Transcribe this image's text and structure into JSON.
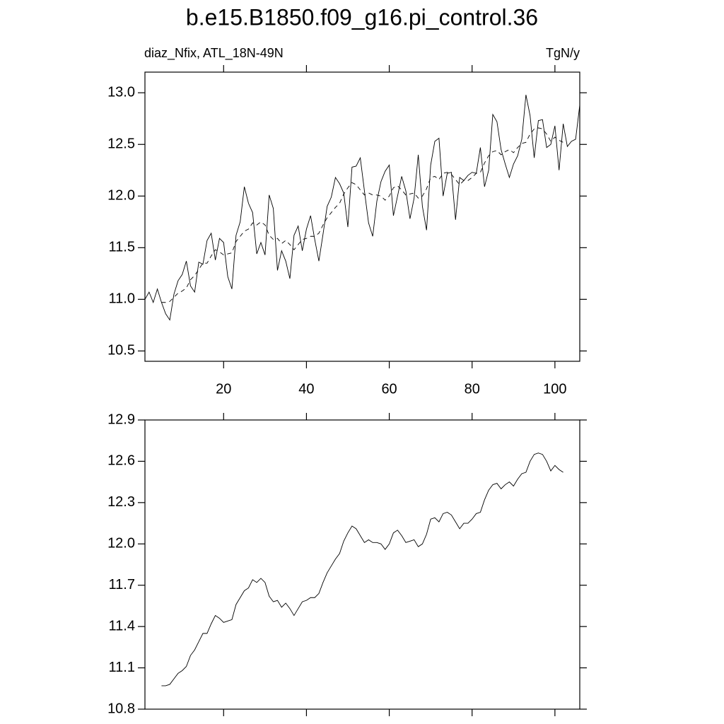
{
  "chart_data": [
    {
      "type": "line",
      "title": "b.e15.B1850.f09_g16.pi_control.36",
      "subtitle_left": "diaz_Nfix, ATL_18N-49N",
      "subtitle_right": "TgN/y",
      "x": [
        1,
        2,
        3,
        4,
        5,
        6,
        7,
        8,
        9,
        10,
        11,
        12,
        13,
        14,
        15,
        16,
        17,
        18,
        19,
        20,
        21,
        22,
        23,
        24,
        25,
        26,
        27,
        28,
        29,
        30,
        31,
        32,
        33,
        34,
        35,
        36,
        37,
        38,
        39,
        40,
        41,
        42,
        43,
        44,
        45,
        46,
        47,
        48,
        49,
        50,
        51,
        52,
        53,
        54,
        55,
        56,
        57,
        58,
        59,
        60,
        61,
        62,
        63,
        64,
        65,
        66,
        67,
        68,
        69,
        70,
        71,
        72,
        73,
        74,
        75,
        76,
        77,
        78,
        79,
        80,
        81,
        82,
        83,
        84,
        85,
        86,
        87,
        88,
        89,
        90,
        91,
        92,
        93,
        94,
        95,
        96,
        97,
        98,
        99,
        100,
        101,
        102,
        103,
        104,
        105,
        106
      ],
      "series": [
        {
          "color": "#000000",
          "line_style": "solid",
          "values": [
            11.0,
            11.07,
            10.97,
            11.1,
            10.97,
            10.86,
            10.8,
            11.05,
            11.18,
            11.24,
            11.37,
            11.13,
            11.07,
            11.36,
            11.34,
            11.57,
            11.64,
            11.38,
            11.59,
            11.55,
            11.22,
            11.1,
            11.62,
            11.75,
            12.09,
            11.93,
            11.84,
            11.44,
            11.55,
            11.43,
            12.01,
            11.88,
            11.28,
            11.47,
            11.37,
            11.2,
            11.62,
            11.71,
            11.47,
            11.68,
            11.81,
            11.58,
            11.37,
            11.63,
            11.9,
            11.99,
            12.18,
            12.12,
            12.03,
            11.7,
            12.28,
            12.29,
            12.37,
            12.05,
            11.74,
            11.61,
            11.95,
            12.14,
            12.24,
            12.3,
            11.81,
            12.0,
            12.19,
            12.05,
            11.78,
            11.98,
            12.4,
            11.9,
            11.67,
            12.3,
            12.53,
            12.56,
            12.0,
            12.22,
            12.23,
            11.77,
            12.18,
            12.15,
            12.2,
            12.23,
            12.22,
            12.47,
            12.09,
            12.25,
            12.79,
            12.72,
            12.45,
            12.31,
            12.18,
            12.31,
            12.39,
            12.55,
            12.98,
            12.78,
            12.37,
            12.73,
            12.74,
            12.47,
            12.5,
            12.68,
            12.25,
            12.7,
            12.48,
            12.53,
            12.55,
            12.88
          ]
        },
        {
          "color": "#000000",
          "line_style": "dashed",
          "values": [
            null,
            null,
            null,
            null,
            10.97,
            10.97,
            10.98,
            11.02,
            11.06,
            11.08,
            11.11,
            11.19,
            11.23,
            11.29,
            11.35,
            11.35,
            11.42,
            11.48,
            11.46,
            11.43,
            11.44,
            11.45,
            11.56,
            11.61,
            11.66,
            11.68,
            11.74,
            11.72,
            11.75,
            11.72,
            11.62,
            11.58,
            11.59,
            11.54,
            11.57,
            11.53,
            11.48,
            11.53,
            11.58,
            11.59,
            11.61,
            11.61,
            11.64,
            11.72,
            11.79,
            11.84,
            11.89,
            11.93,
            12.02,
            12.08,
            12.13,
            12.11,
            12.06,
            12.01,
            12.03,
            12.01,
            12.01,
            12.0,
            11.96,
            12.0,
            12.08,
            12.1,
            12.06,
            12.01,
            12.02,
            12.03,
            11.98,
            12.0,
            12.07,
            12.18,
            12.19,
            12.16,
            12.22,
            12.23,
            12.21,
            12.16,
            12.11,
            12.15,
            12.15,
            12.18,
            12.22,
            12.23,
            12.32,
            12.39,
            12.43,
            12.44,
            12.4,
            12.43,
            12.45,
            12.42,
            12.47,
            12.51,
            12.52,
            12.6,
            12.65,
            12.66,
            12.65,
            12.6,
            12.53,
            12.57,
            12.54,
            12.52,
            null,
            null,
            null,
            null
          ]
        }
      ],
      "xlim": [
        1,
        106
      ],
      "xticks": [
        20,
        40,
        60,
        80,
        100
      ],
      "show_xtick_labels": true,
      "ylim": [
        10.4,
        13.2
      ],
      "yticks": [
        {
          "value": 10.5,
          "label": "10.5"
        },
        {
          "value": 11,
          "label": "11.0"
        },
        11.5,
        {
          "value": 12,
          "label": "12.0"
        },
        12.5,
        {
          "value": 13,
          "label": "13.0"
        }
      ]
    },
    {
      "type": "line",
      "x": [
        5,
        6,
        7,
        8,
        9,
        10,
        11,
        12,
        13,
        14,
        15,
        16,
        17,
        18,
        19,
        20,
        21,
        22,
        23,
        24,
        25,
        26,
        27,
        28,
        29,
        30,
        31,
        32,
        33,
        34,
        35,
        36,
        37,
        38,
        39,
        40,
        41,
        42,
        43,
        44,
        45,
        46,
        47,
        48,
        49,
        50,
        51,
        52,
        53,
        54,
        55,
        56,
        57,
        58,
        59,
        60,
        61,
        62,
        63,
        64,
        65,
        66,
        67,
        68,
        69,
        70,
        71,
        72,
        73,
        74,
        75,
        76,
        77,
        78,
        79,
        80,
        81,
        82,
        83,
        84,
        85,
        86,
        87,
        88,
        89,
        90,
        91,
        92,
        93,
        94,
        95,
        96,
        97,
        98,
        99,
        100,
        101,
        102
      ],
      "series": [
        {
          "color": "#000000",
          "line_style": "solid",
          "values": [
            10.97,
            10.97,
            10.98,
            11.02,
            11.06,
            11.08,
            11.11,
            11.19,
            11.23,
            11.29,
            11.35,
            11.35,
            11.42,
            11.48,
            11.46,
            11.43,
            11.44,
            11.45,
            11.56,
            11.61,
            11.66,
            11.68,
            11.74,
            11.72,
            11.75,
            11.72,
            11.62,
            11.58,
            11.59,
            11.54,
            11.57,
            11.53,
            11.48,
            11.53,
            11.58,
            11.59,
            11.61,
            11.61,
            11.64,
            11.72,
            11.79,
            11.84,
            11.89,
            11.93,
            12.02,
            12.08,
            12.13,
            12.11,
            12.06,
            12.01,
            12.03,
            12.01,
            12.01,
            12.0,
            11.96,
            12.0,
            12.08,
            12.1,
            12.06,
            12.01,
            12.02,
            12.03,
            11.98,
            12.0,
            12.07,
            12.18,
            12.19,
            12.16,
            12.22,
            12.23,
            12.21,
            12.16,
            12.11,
            12.15,
            12.15,
            12.18,
            12.22,
            12.23,
            12.32,
            12.39,
            12.43,
            12.44,
            12.4,
            12.43,
            12.45,
            12.42,
            12.47,
            12.51,
            12.52,
            12.6,
            12.65,
            12.66,
            12.65,
            12.6,
            12.53,
            12.57,
            12.54,
            12.52
          ]
        }
      ],
      "xlim": [
        1,
        106
      ],
      "xticks": [
        20,
        40,
        60,
        80,
        100
      ],
      "show_xtick_labels": false,
      "ylim": [
        10.8,
        12.9
      ],
      "yticks": [
        10.8,
        11.1,
        11.4,
        11.7,
        {
          "value": 12,
          "label": "12.0"
        },
        12.3,
        12.6,
        12.9
      ]
    }
  ]
}
